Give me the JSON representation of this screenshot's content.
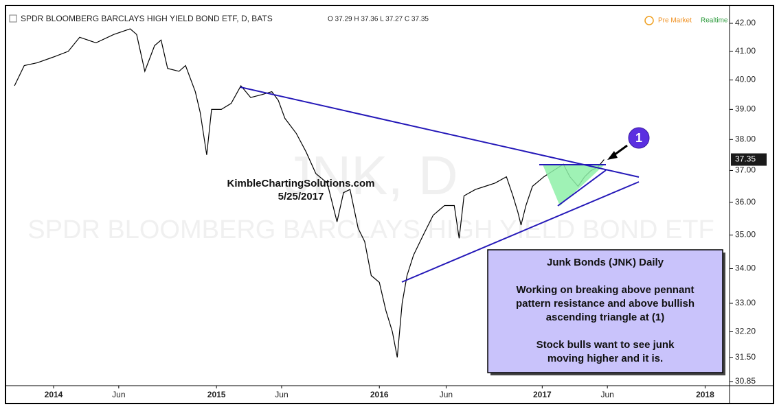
{
  "chart_data": {
    "type": "line",
    "title": "SPDR BLOOMBERG BARCLAYS HIGH YIELD BOND ETF, D, BATS",
    "ohlc": "O 37.29 H 37.36 L 37.27 C 37.35",
    "status": [
      "Pre Market",
      "Realtime"
    ],
    "watermark": [
      "JNK, D",
      "SPDR BLOOMBERG BARCLAYS HIGH YIELD BOND ETF"
    ],
    "source": "KimbleChartingSolutions.com",
    "date": "5/25/2017",
    "marker": "1",
    "annotation": [
      "Junk Bonds (JNK) Daily",
      "Working on breaking above pennant",
      "pattern resistance and above bullish",
      "ascending triangle at (1)",
      "Stock bulls want to see junk",
      "moving higher and it is."
    ],
    "last_price": {
      "value": 37.35,
      "label": "37.35"
    },
    "log_y": true,
    "color": "#000000",
    "x": [
      2013.76,
      2013.82,
      2013.9,
      2014.0,
      2014.09,
      2014.16,
      2014.26,
      2014.37,
      2014.47,
      2014.51,
      2014.56,
      2014.62,
      2014.66,
      2014.7,
      2014.77,
      2014.81,
      2014.87,
      2014.9,
      2014.94,
      2014.97,
      2015.03,
      2015.09,
      2015.15,
      2015.21,
      2015.28,
      2015.34,
      2015.38,
      2015.42,
      2015.49,
      2015.55,
      2015.61,
      2015.68,
      2015.74,
      2015.78,
      2015.82,
      2015.87,
      2015.91,
      2015.95,
      2016.0,
      2016.04,
      2016.08,
      2016.11,
      2016.14,
      2016.17,
      2016.21,
      2016.27,
      2016.33,
      2016.4,
      2016.46,
      2016.49,
      2016.52,
      2016.59,
      2016.65,
      2016.71,
      2016.78,
      2016.82,
      2016.85,
      2016.87,
      2016.9,
      2016.94,
      2017.01,
      2017.07,
      2017.13,
      2017.17,
      2017.22,
      2017.26,
      2017.3,
      2017.34,
      2017.38
    ],
    "values": [
      39.8,
      40.5,
      40.6,
      40.8,
      41.0,
      41.5,
      41.3,
      41.6,
      41.8,
      41.6,
      40.3,
      41.2,
      41.4,
      40.4,
      40.3,
      40.5,
      39.6,
      38.9,
      37.5,
      39.0,
      39.0,
      39.2,
      39.8,
      39.4,
      39.5,
      39.6,
      39.3,
      38.7,
      38.2,
      37.6,
      36.9,
      36.6,
      35.4,
      36.3,
      36.4,
      35.2,
      34.8,
      33.8,
      33.6,
      32.8,
      32.2,
      31.5,
      33.0,
      33.8,
      34.4,
      35.0,
      35.6,
      35.9,
      35.9,
      34.9,
      36.2,
      36.4,
      36.5,
      36.6,
      36.8,
      36.2,
      35.7,
      35.3,
      35.9,
      36.5,
      36.8,
      37.0,
      37.2,
      36.8,
      36.5,
      36.8,
      37.0,
      37.1,
      37.35
    ],
    "xlim": [
      2013.73,
      2018.15
    ],
    "xticks": [
      {
        "value": 2014.0,
        "label": "2014"
      },
      {
        "value": 2014.4,
        "label": "Jun"
      },
      {
        "value": 2015.0,
        "label": "2015"
      },
      {
        "value": 2015.4,
        "label": "Jun"
      },
      {
        "value": 2016.0,
        "label": "2016"
      },
      {
        "value": 2016.41,
        "label": "Jun"
      },
      {
        "value": 2017.0,
        "label": "2017"
      },
      {
        "value": 2017.4,
        "label": "Jun"
      },
      {
        "value": 2018.0,
        "label": "2018"
      }
    ],
    "ylim": [
      30.74,
      42.55
    ],
    "yticks": [
      {
        "value": 42,
        "label": "42.00"
      },
      {
        "value": 41,
        "label": "41.00"
      },
      {
        "value": 40,
        "label": "40.00"
      },
      {
        "value": 39,
        "label": "39.00"
      },
      {
        "value": 38,
        "label": "38.00"
      },
      {
        "value": 37,
        "label": "37.00"
      },
      {
        "value": 36,
        "label": "36.00"
      },
      {
        "value": 35,
        "label": "35.00"
      },
      {
        "value": 34,
        "label": "34.00"
      },
      {
        "value": 33,
        "label": "33.00"
      },
      {
        "value": 32.2,
        "label": "32.20"
      },
      {
        "value": 31.5,
        "label": "31.50"
      },
      {
        "value": 30.85,
        "label": "30.85"
      }
    ]
  }
}
